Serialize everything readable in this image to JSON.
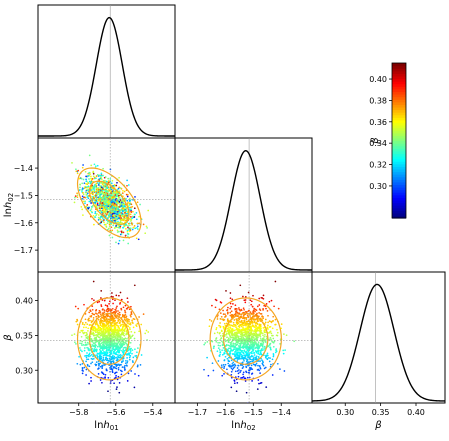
{
  "chart_data": {
    "type": "corner",
    "parameters": [
      "lnh01",
      "lnh02",
      "beta"
    ],
    "axis_labels": {
      "lnh01": {
        "main": "ln",
        "italic": "h",
        "sub": "01"
      },
      "lnh02": {
        "main": "ln",
        "italic": "h",
        "sub": "02"
      },
      "beta": {
        "main": "",
        "italic": "β",
        "sub": ""
      }
    },
    "ranges": {
      "lnh01": [
        -6.02,
        -5.28
      ],
      "lnh02": [
        -1.78,
        -1.29
      ],
      "beta": [
        0.253,
        0.441
      ]
    },
    "ticks": {
      "lnh01": [
        -5.8,
        -5.6,
        -5.4
      ],
      "lnh02": [
        -1.7,
        -1.6,
        -1.5,
        -1.4
      ],
      "beta": [
        0.3,
        0.35,
        0.4
      ]
    },
    "tick_labels": {
      "lnh01": [
        "−5.8",
        "−5.6",
        "−5.4"
      ],
      "lnh02": [
        "−1.7",
        "−1.6",
        "−1.5",
        "−1.4"
      ],
      "beta": [
        "0.30",
        "0.35",
        "0.40"
      ]
    },
    "truth": {
      "lnh01": -5.63,
      "lnh02": -1.515,
      "beta": 0.343
    },
    "marginals": {
      "lnh01": {
        "mean": -5.635,
        "sd": 0.07
      },
      "lnh02": {
        "mean": -1.527,
        "sd": 0.052
      },
      "beta": {
        "mean": 0.345,
        "sd": 0.024
      }
    },
    "contour_levels": [
      "68%",
      "95%"
    ],
    "colorbar": {
      "label": "β",
      "range": [
        0.27,
        0.415
      ],
      "ticks": [
        "0.30",
        "0.32",
        "0.34",
        "0.36",
        "0.38",
        "0.40"
      ],
      "tick_values": [
        0.3,
        0.32,
        0.34,
        0.36,
        0.38,
        0.4
      ],
      "colormap": "jet"
    },
    "colors": {
      "curve": "#000000",
      "contour": "#f5a623",
      "truth_line": "#9a9a9a"
    },
    "scatter_points_per_panel": 1500
  }
}
